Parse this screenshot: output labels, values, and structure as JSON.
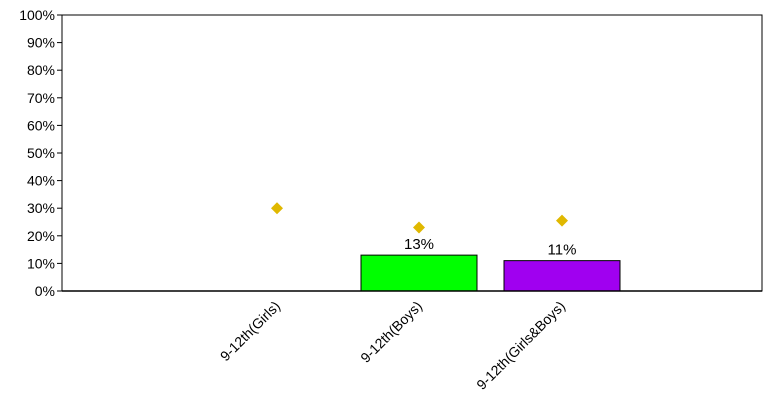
{
  "chart_data": {
    "type": "bar",
    "categories": [
      "9-12th(Girls)",
      "9-12th(Boys)",
      "9-12th(Girls&Boys)"
    ],
    "values": [
      null,
      13,
      11
    ],
    "data_labels": [
      "",
      "13%",
      "11%"
    ],
    "bar_colors": [
      "#00ff00",
      "#00ff00",
      "#a000f0"
    ],
    "markers": {
      "shape": "diamond",
      "color": "#e0b800",
      "values": [
        30,
        23,
        25.5
      ]
    },
    "ylim": [
      0,
      100
    ],
    "ytick_labels": [
      "0%",
      "10%",
      "20%",
      "30%",
      "40%",
      "50%",
      "60%",
      "70%",
      "80%",
      "90%",
      "100%"
    ],
    "title": "",
    "xlabel": "",
    "ylabel": "",
    "grid": false,
    "legend": false
  }
}
